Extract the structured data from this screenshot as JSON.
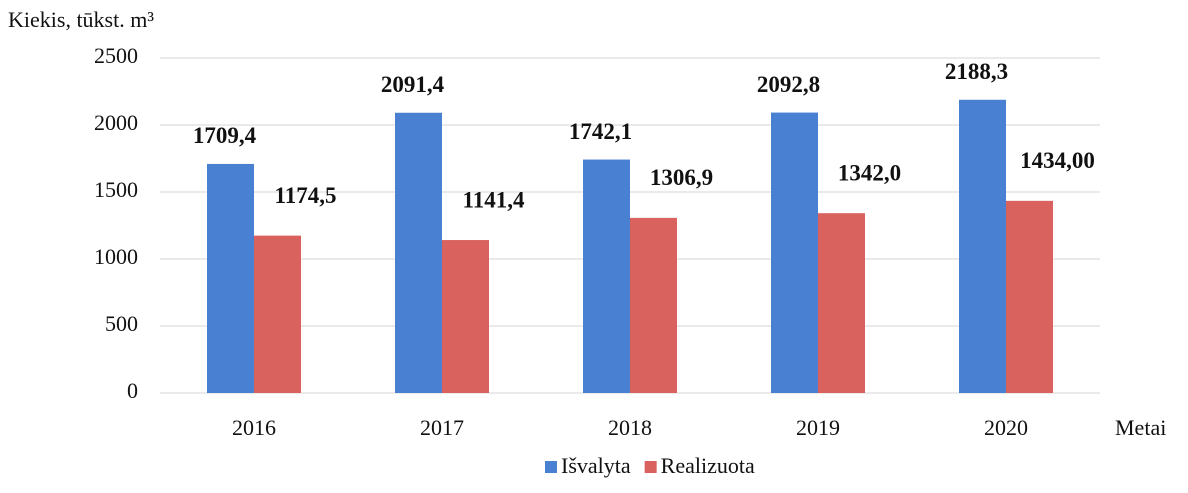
{
  "chart_data": {
    "type": "bar",
    "y_label": "Kiekis, tūkst. m³",
    "x_label": "Metai",
    "categories": [
      "2016",
      "2017",
      "2018",
      "2019",
      "2020"
    ],
    "series": [
      {
        "name": "Išvalyta",
        "color": "#4a80d2",
        "values": [
          1709.4,
          2091.4,
          1742.1,
          2092.8,
          2188.3
        ],
        "value_labels": [
          "1709,4",
          "2091,4",
          "1742,1",
          "2092,8",
          "2188,3"
        ]
      },
      {
        "name": "Realizuota",
        "color": "#d9625e",
        "values": [
          1174.5,
          1141.4,
          1306.9,
          1342.0,
          1434.0
        ],
        "value_labels": [
          "1174,5",
          "1141,4",
          "1306,9",
          "1342,0",
          "1434,00"
        ]
      }
    ],
    "ylim": [
      0,
      2500
    ],
    "yticks": [
      0,
      500,
      1000,
      1500,
      2000,
      2500
    ],
    "grid": true,
    "legend": "bottom"
  }
}
